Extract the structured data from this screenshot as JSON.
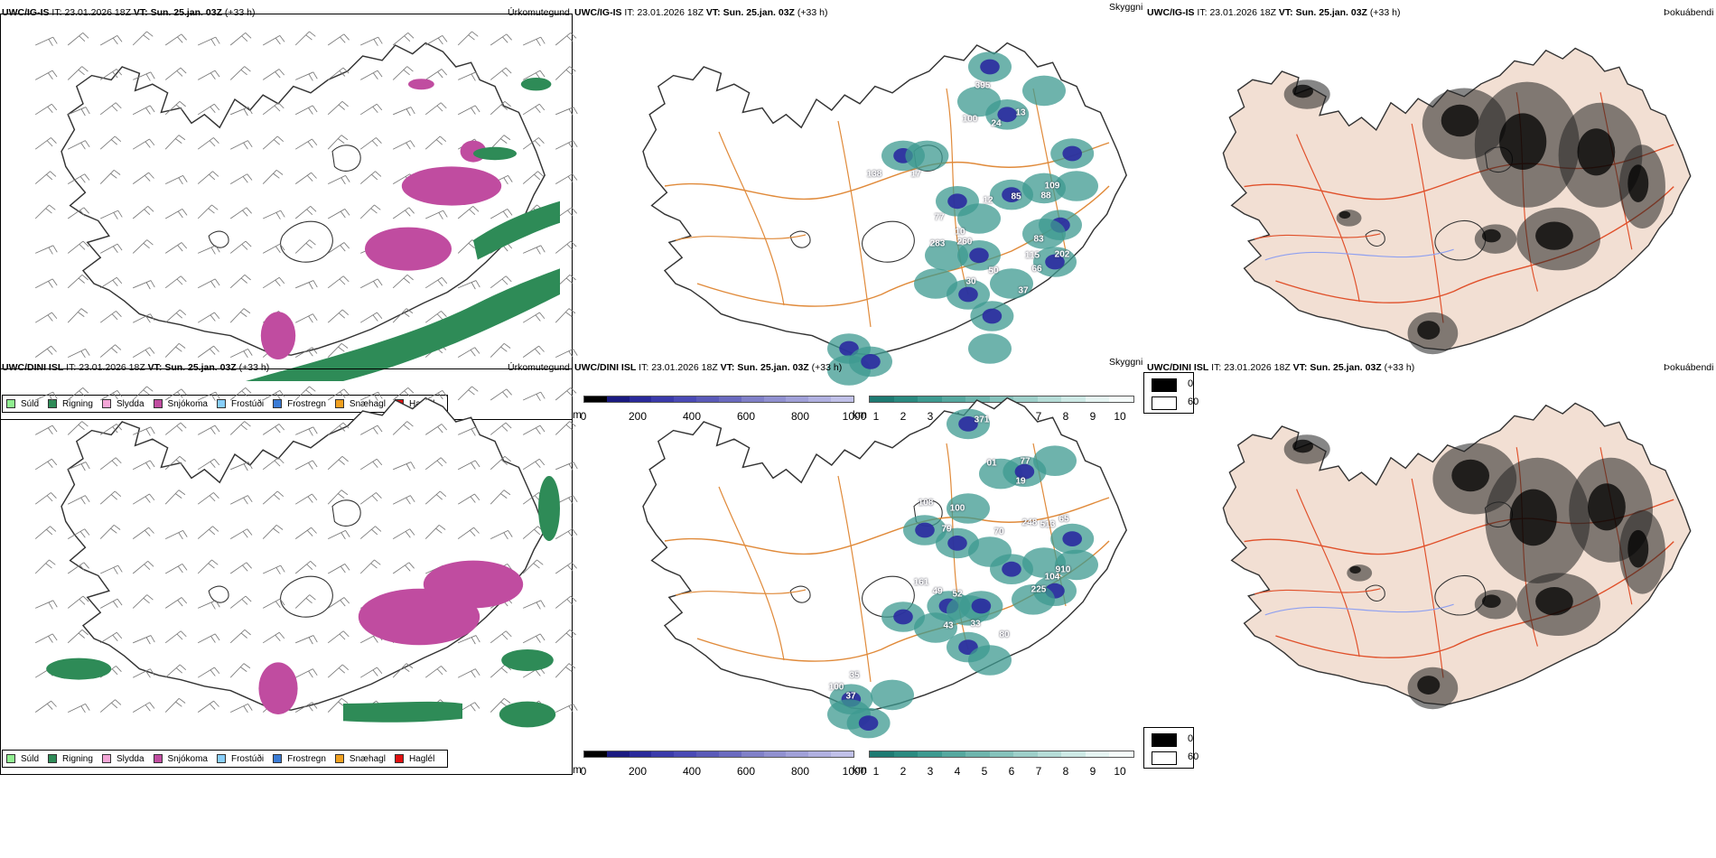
{
  "rows": [
    {
      "model": "UWC/IG-IS",
      "it_label": "IT:",
      "it_value": "23.01.2026 18Z",
      "vt_label": "VT:",
      "vt_value": "Sun. 25.jan. 03Z",
      "lead": "(+33 h)"
    },
    {
      "model": "UWC/DINI ISL",
      "it_label": "IT:",
      "it_value": "23.01.2026 18Z",
      "vt_label": "VT:",
      "vt_value": "Sun. 25.jan. 03Z",
      "lead": "(+33 h)"
    }
  ],
  "panel_titles": {
    "precip": "Úrkomutegund",
    "cloud": "Skyggni",
    "fog": "Þokuábendi"
  },
  "precip_legend": [
    {
      "label": "Súld",
      "color": "#90ee90"
    },
    {
      "label": "Rigning",
      "color": "#2e8b57"
    },
    {
      "label": "Slydda",
      "color": "#f4a6d7"
    },
    {
      "label": "Snjókoma",
      "color": "#c04ca0"
    },
    {
      "label": "Frostúði",
      "color": "#87cefa"
    },
    {
      "label": "Frostregn",
      "color": "#3a7bd5"
    },
    {
      "label": "Snæhagl",
      "color": "#f0a020"
    },
    {
      "label": "Haglél",
      "color": "#e01010"
    }
  ],
  "ceiling_bar": {
    "unit": "m",
    "ticks": [
      "0",
      "200",
      "400",
      "600",
      "800",
      "1000"
    ],
    "colors": [
      "#000000",
      "#1a1a80",
      "#2a2a9a",
      "#3a3aaa",
      "#4a4ab5",
      "#5a5ab8",
      "#6a6abf",
      "#8080c8",
      "#9090d0",
      "#a0a0d8",
      "#b0b0e0",
      "#c0c0e8"
    ]
  },
  "visibility_bar": {
    "unit": "km",
    "ticks": [
      "1",
      "2",
      "3",
      "4",
      "5",
      "6",
      "7",
      "8",
      "9",
      "10"
    ],
    "colors": [
      "#1e7a72",
      "#2a8a80",
      "#3d9a90",
      "#55a89f",
      "#6db5ad",
      "#85c2bb",
      "#9dcfc9",
      "#b5dcd7",
      "#cde9e5",
      "#e5f4f2",
      "#f5fbfa"
    ]
  },
  "fog_legend": [
    {
      "label": "0",
      "color": "#000000"
    },
    {
      "label": "60",
      "color": "#ffffff"
    }
  ],
  "ceiling_labels_top": [
    "395",
    "100",
    "24",
    "13",
    "138",
    "17",
    "77",
    "10",
    "12",
    "85",
    "88",
    "109",
    "83",
    "115",
    "202",
    "283",
    "260",
    "30",
    "50",
    "66",
    "37"
  ],
  "ceiling_labels_bottom": [
    "371",
    "01",
    "77",
    "19",
    "108",
    "100",
    "79",
    "70",
    "248",
    "513",
    "65",
    "910",
    "104",
    "225",
    "161",
    "49",
    "52",
    "43",
    "33",
    "80",
    "35",
    "100",
    "37"
  ]
}
